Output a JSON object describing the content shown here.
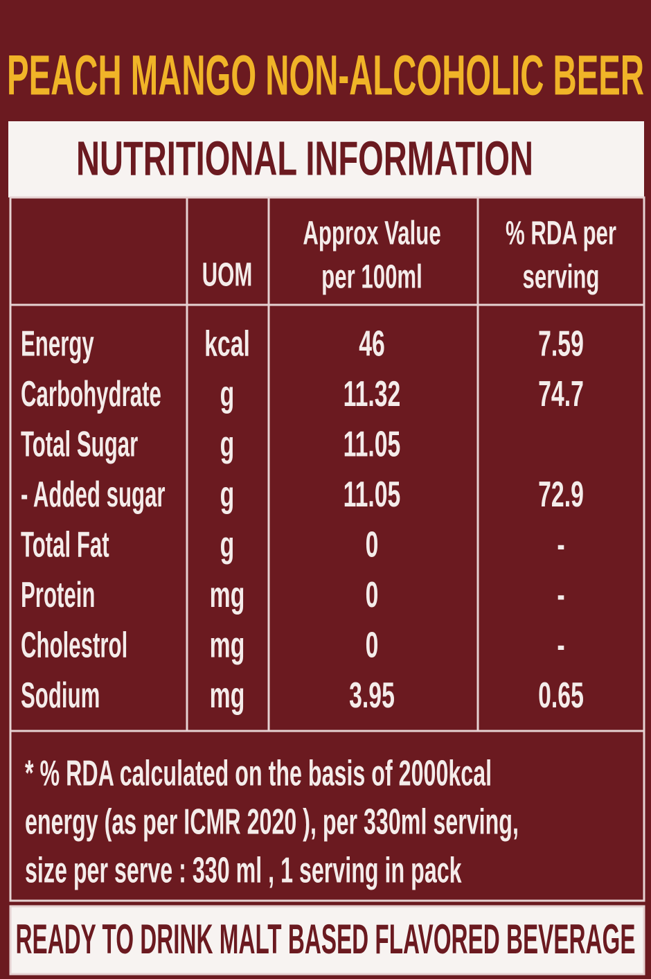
{
  "title": "PEACH MANGO NON-ALCOHOLIC BEER",
  "table": {
    "heading": "NUTRITIONAL INFORMATION",
    "header": {
      "uom": "UOM",
      "value": [
        "Approx Value",
        "per 100ml"
      ],
      "rda": [
        "% RDA per",
        "serving"
      ]
    },
    "rows": [
      [
        "Energy",
        "kcal",
        "46",
        "7.59"
      ],
      [
        "Carbohydrate",
        "g",
        "11.32",
        "74.7"
      ],
      [
        "Total Sugar",
        "g",
        "11.05",
        null
      ],
      [
        "- Added sugar",
        "g",
        "11.05",
        "72.9"
      ],
      [
        "Total Fat",
        "g",
        "0",
        "-"
      ],
      [
        "Protein",
        "mg",
        "0",
        "-"
      ],
      [
        "Cholestrol",
        "mg",
        "0",
        "-"
      ],
      [
        "Sodium",
        "mg",
        "3.95",
        "0.65"
      ]
    ],
    "footnote": [
      "* % RDA calculated on the basis of 2000kcal",
      "energy (as per ICMR 2020 ), per 330ml serving,",
      "size per serve : 330 ml , 1 serving in pack"
    ]
  },
  "footer": "READY TO DRINK MALT BASED FLAVORED BEVERAGE"
}
